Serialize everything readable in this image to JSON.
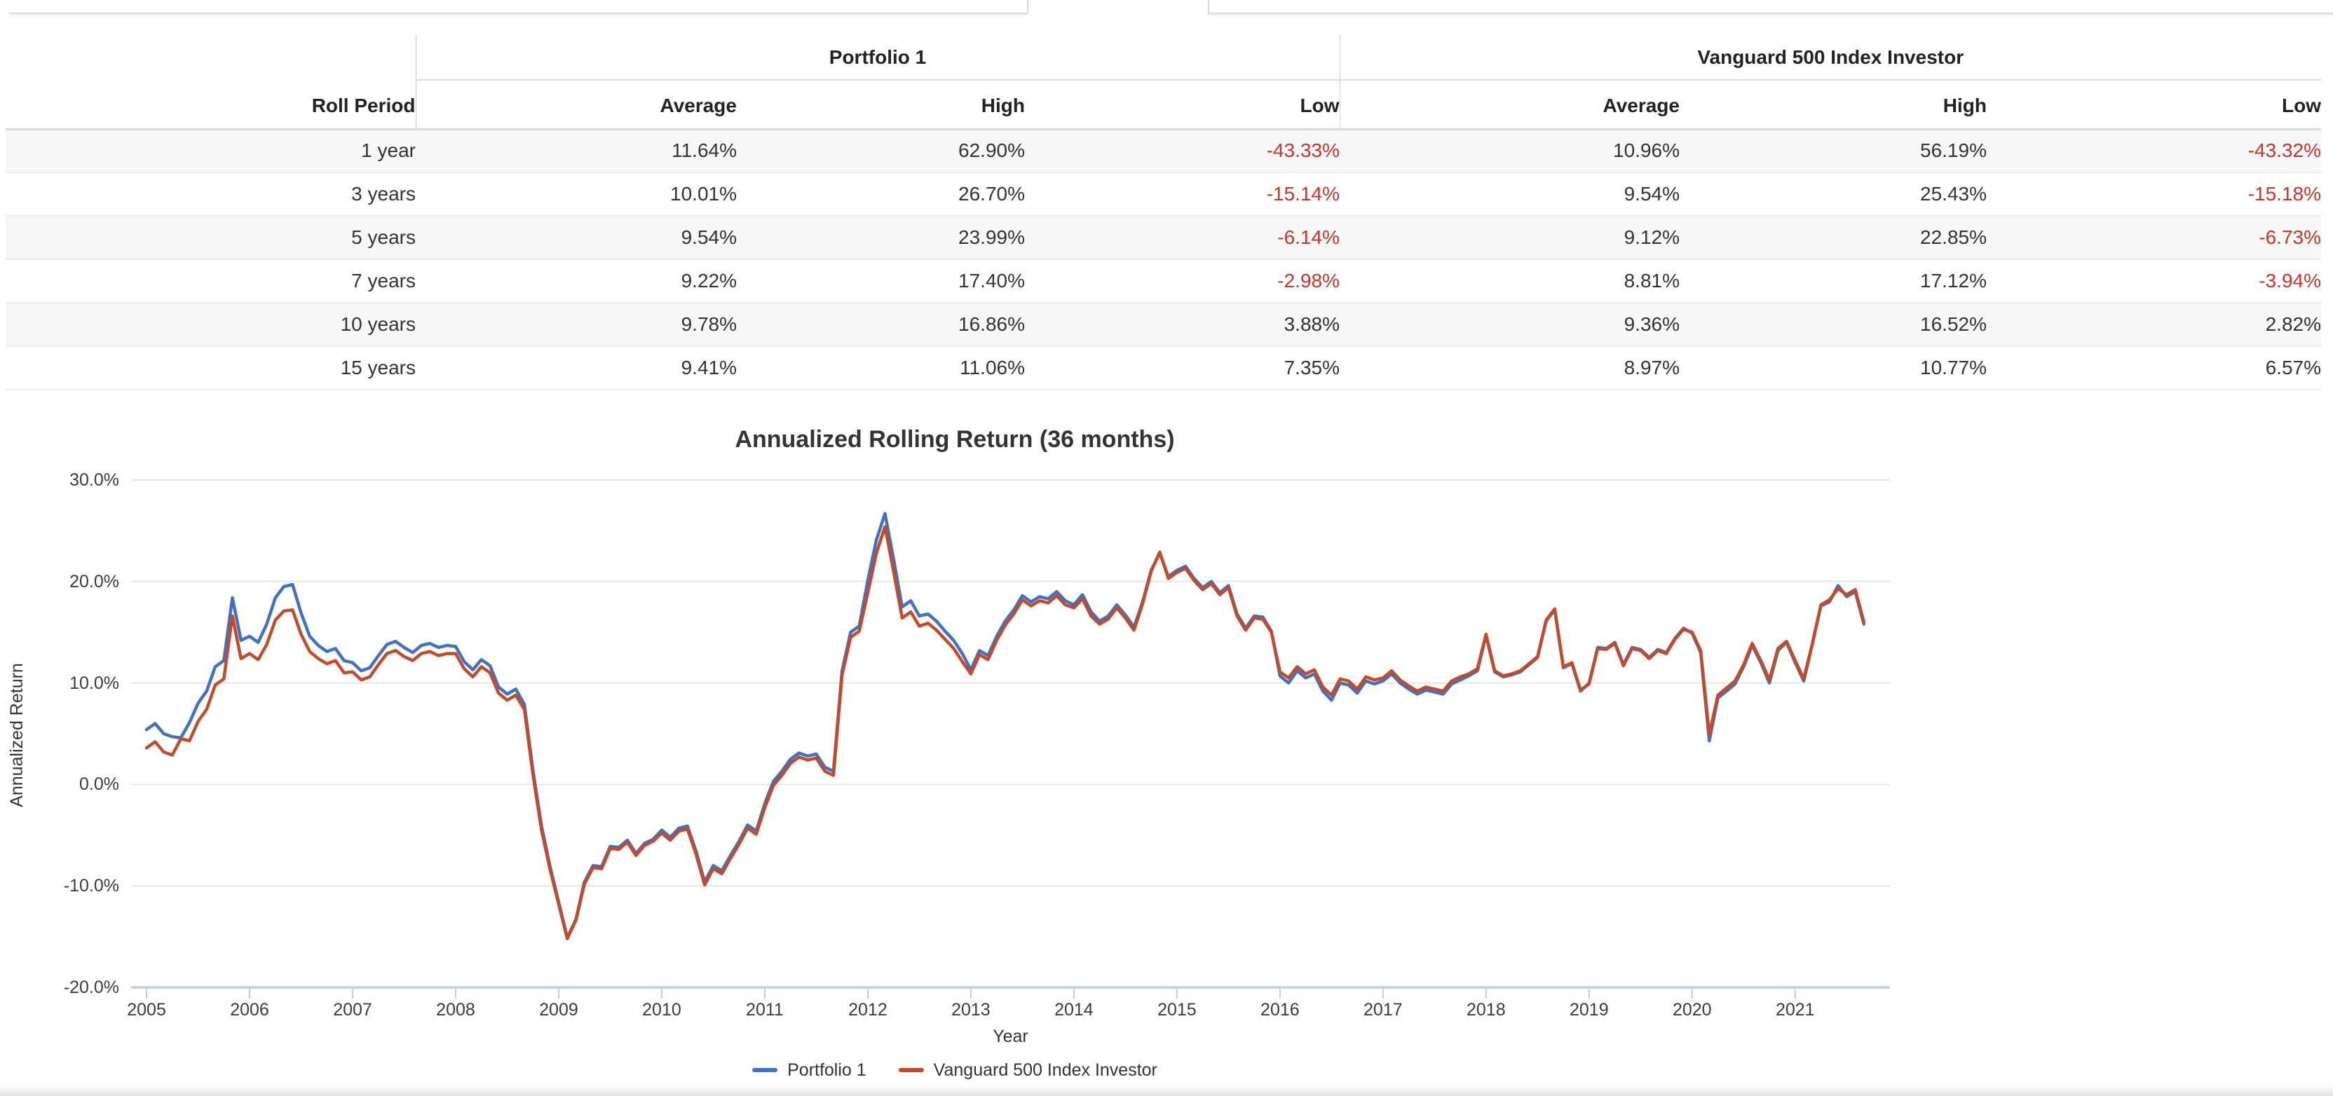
{
  "table": {
    "group_headers": [
      "Portfolio 1",
      "Vanguard 500 Index Investor"
    ],
    "col_headers": [
      "Roll Period",
      "Average",
      "High",
      "Low",
      "Average",
      "High",
      "Low"
    ],
    "rows": [
      {
        "period": "1 year",
        "p1_avg": "11.64%",
        "p1_high": "62.90%",
        "p1_low": "-43.33%",
        "v_avg": "10.96%",
        "v_high": "56.19%",
        "v_low": "-43.32%"
      },
      {
        "period": "3 years",
        "p1_avg": "10.01%",
        "p1_high": "26.70%",
        "p1_low": "-15.14%",
        "v_avg": "9.54%",
        "v_high": "25.43%",
        "v_low": "-15.18%"
      },
      {
        "period": "5 years",
        "p1_avg": "9.54%",
        "p1_high": "23.99%",
        "p1_low": "-6.14%",
        "v_avg": "9.12%",
        "v_high": "22.85%",
        "v_low": "-6.73%"
      },
      {
        "period": "7 years",
        "p1_avg": "9.22%",
        "p1_high": "17.40%",
        "p1_low": "-2.98%",
        "v_avg": "8.81%",
        "v_high": "17.12%",
        "v_low": "-3.94%"
      },
      {
        "period": "10 years",
        "p1_avg": "9.78%",
        "p1_high": "16.86%",
        "p1_low": "3.88%",
        "v_avg": "9.36%",
        "v_high": "16.52%",
        "v_low": "2.82%"
      },
      {
        "period": "15 years",
        "p1_avg": "9.41%",
        "p1_high": "11.06%",
        "p1_low": "7.35%",
        "v_avg": "8.97%",
        "v_high": "10.77%",
        "v_low": "6.57%"
      }
    ],
    "negative_color": "#cb3328"
  },
  "chart_data": {
    "type": "line",
    "title": "Annualized Rolling Return (36 months)",
    "xlabel": "Year",
    "ylabel": "Annualized Return",
    "xlim": [
      2004.85,
      2021.92
    ],
    "ylim": [
      -20,
      30
    ],
    "grid": true,
    "legend_position": "bottom",
    "x_start": 2005.0,
    "x_step_months": 1,
    "yticks": [
      {
        "value": 30,
        "label": "30.0%"
      },
      {
        "value": 20,
        "label": "20.0%"
      },
      {
        "value": 10,
        "label": "10.0%"
      },
      {
        "value": 0,
        "label": "0.0%"
      },
      {
        "value": -10,
        "label": "-10.0%"
      },
      {
        "value": -20,
        "label": "-20.0%"
      }
    ],
    "xticks": [
      {
        "value": 2005,
        "label": "2005"
      },
      {
        "value": 2006,
        "label": "2006"
      },
      {
        "value": 2007,
        "label": "2007"
      },
      {
        "value": 2008,
        "label": "2008"
      },
      {
        "value": 2009,
        "label": "2009"
      },
      {
        "value": 2010,
        "label": "2010"
      },
      {
        "value": 2011,
        "label": "2011"
      },
      {
        "value": 2012,
        "label": "2012"
      },
      {
        "value": 2013,
        "label": "2013"
      },
      {
        "value": 2014,
        "label": "2014"
      },
      {
        "value": 2015,
        "label": "2015"
      },
      {
        "value": 2016,
        "label": "2016"
      },
      {
        "value": 2017,
        "label": "2017"
      },
      {
        "value": 2018,
        "label": "2018"
      },
      {
        "value": 2019,
        "label": "2019"
      },
      {
        "value": 2020,
        "label": "2020"
      },
      {
        "value": 2021,
        "label": "2021"
      }
    ],
    "grid_color": "#e7e7e7",
    "axis_color": "#c7d2e2",
    "series": [
      {
        "name": "Portfolio 1",
        "color": "#4170c4",
        "values": [
          5.4,
          6.0,
          5.0,
          4.7,
          4.6,
          6.1,
          8.0,
          9.2,
          11.6,
          12.2,
          18.4,
          14.2,
          14.6,
          14.0,
          15.8,
          18.4,
          19.5,
          19.7,
          16.9,
          14.6,
          13.7,
          13.1,
          13.4,
          12.2,
          12.0,
          11.2,
          11.5,
          12.7,
          13.8,
          14.1,
          13.5,
          13.0,
          13.7,
          13.9,
          13.5,
          13.7,
          13.6,
          12.1,
          11.3,
          12.3,
          11.7,
          9.6,
          8.9,
          9.4,
          7.9,
          1.4,
          -4.1,
          -8.1,
          -11.6,
          -15.1,
          -13.3,
          -9.6,
          -8.0,
          -8.1,
          -6.1,
          -6.2,
          -5.5,
          -6.8,
          -5.8,
          -5.4,
          -4.5,
          -5.2,
          -4.3,
          -4.1,
          -6.6,
          -9.6,
          -8.0,
          -8.5,
          -7.0,
          -5.6,
          -4.0,
          -4.6,
          -1.9,
          0.3,
          1.3,
          2.5,
          3.1,
          2.8,
          3.0,
          1.7,
          1.3,
          11.2,
          15.0,
          15.6,
          20.1,
          24.1,
          26.7,
          22.2,
          17.5,
          18.1,
          16.6,
          16.8,
          16.1,
          15.1,
          14.2,
          12.9,
          11.3,
          13.2,
          12.7,
          14.6,
          16.1,
          17.2,
          18.6,
          18.0,
          18.5,
          18.3,
          19.0,
          18.1,
          17.7,
          18.7,
          17.0,
          16.1,
          16.6,
          17.7,
          16.7,
          15.5,
          18.0,
          21.1,
          22.8,
          20.5,
          21.1,
          21.5,
          20.3,
          19.4,
          20.0,
          18.9,
          19.6,
          16.8,
          15.4,
          16.6,
          16.5,
          15.1,
          10.7,
          10.0,
          11.2,
          10.5,
          10.9,
          9.2,
          8.3,
          10.0,
          9.8,
          9.0,
          10.2,
          9.9,
          10.2,
          10.9,
          10.0,
          9.4,
          8.9,
          9.3,
          9.1,
          8.9,
          9.9,
          10.3,
          10.7,
          11.2,
          14.7,
          11.1,
          10.6,
          10.8,
          11.1,
          11.8,
          12.5,
          16.1,
          17.2,
          11.5,
          11.9,
          9.2,
          10.0,
          13.5,
          13.4,
          14.0,
          11.8,
          13.5,
          13.3,
          12.5,
          13.3,
          13.0,
          14.4,
          15.4,
          14.9,
          13.0,
          4.3,
          8.5,
          9.2,
          9.9,
          11.6,
          13.7,
          12.0,
          10.0,
          13.2,
          14.0,
          12.0,
          10.2,
          13.8,
          17.6,
          18.0,
          19.6,
          18.5,
          19.0,
          15.8
        ]
      },
      {
        "name": "Vanguard 500 Index Investor",
        "color": "#c44a2a",
        "values": [
          3.6,
          4.2,
          3.2,
          2.9,
          4.5,
          4.3,
          6.2,
          7.4,
          9.8,
          10.4,
          16.6,
          12.4,
          12.9,
          12.3,
          13.8,
          16.2,
          17.1,
          17.2,
          14.8,
          13.1,
          12.4,
          11.9,
          12.2,
          11.0,
          11.1,
          10.3,
          10.6,
          11.8,
          12.9,
          13.2,
          12.6,
          12.2,
          12.9,
          13.1,
          12.7,
          12.9,
          12.9,
          11.4,
          10.6,
          11.6,
          11.0,
          9.0,
          8.3,
          8.8,
          7.4,
          1.0,
          -4.5,
          -8.4,
          -11.8,
          -15.2,
          -13.4,
          -9.8,
          -8.2,
          -8.3,
          -6.3,
          -6.4,
          -5.7,
          -7.0,
          -6.0,
          -5.6,
          -4.8,
          -5.5,
          -4.6,
          -4.4,
          -6.9,
          -9.9,
          -8.3,
          -8.8,
          -7.3,
          -5.9,
          -4.3,
          -4.9,
          -2.3,
          -0.1,
          0.9,
          2.1,
          2.7,
          2.4,
          2.6,
          1.3,
          0.9,
          10.8,
          14.5,
          15.1,
          18.9,
          22.8,
          25.4,
          21.0,
          16.4,
          17.0,
          15.6,
          15.9,
          15.2,
          14.3,
          13.4,
          12.1,
          10.9,
          12.8,
          12.3,
          14.2,
          15.7,
          16.8,
          18.2,
          17.6,
          18.1,
          17.9,
          18.6,
          17.7,
          17.4,
          18.3,
          16.6,
          15.8,
          16.3,
          17.4,
          16.4,
          15.2,
          17.8,
          21.0,
          22.9,
          20.3,
          20.9,
          21.3,
          20.1,
          19.2,
          19.8,
          18.7,
          19.4,
          16.6,
          15.2,
          16.4,
          16.3,
          15.0,
          11.1,
          10.5,
          11.6,
          10.9,
          11.3,
          9.6,
          8.8,
          10.4,
          10.2,
          9.4,
          10.6,
          10.3,
          10.5,
          11.2,
          10.3,
          9.7,
          9.2,
          9.6,
          9.4,
          9.2,
          10.2,
          10.6,
          10.9,
          11.4,
          14.8,
          11.2,
          10.7,
          10.9,
          11.2,
          11.9,
          12.6,
          16.2,
          17.3,
          11.6,
          12.0,
          9.3,
          9.9,
          13.4,
          13.3,
          13.9,
          11.7,
          13.4,
          13.2,
          12.4,
          13.2,
          12.9,
          14.3,
          15.3,
          15.0,
          13.2,
          4.9,
          8.8,
          9.5,
          10.2,
          11.8,
          13.9,
          12.2,
          10.3,
          13.4,
          14.1,
          12.2,
          10.4,
          13.9,
          17.7,
          18.2,
          19.3,
          18.7,
          19.2,
          16.0
        ]
      }
    ]
  }
}
